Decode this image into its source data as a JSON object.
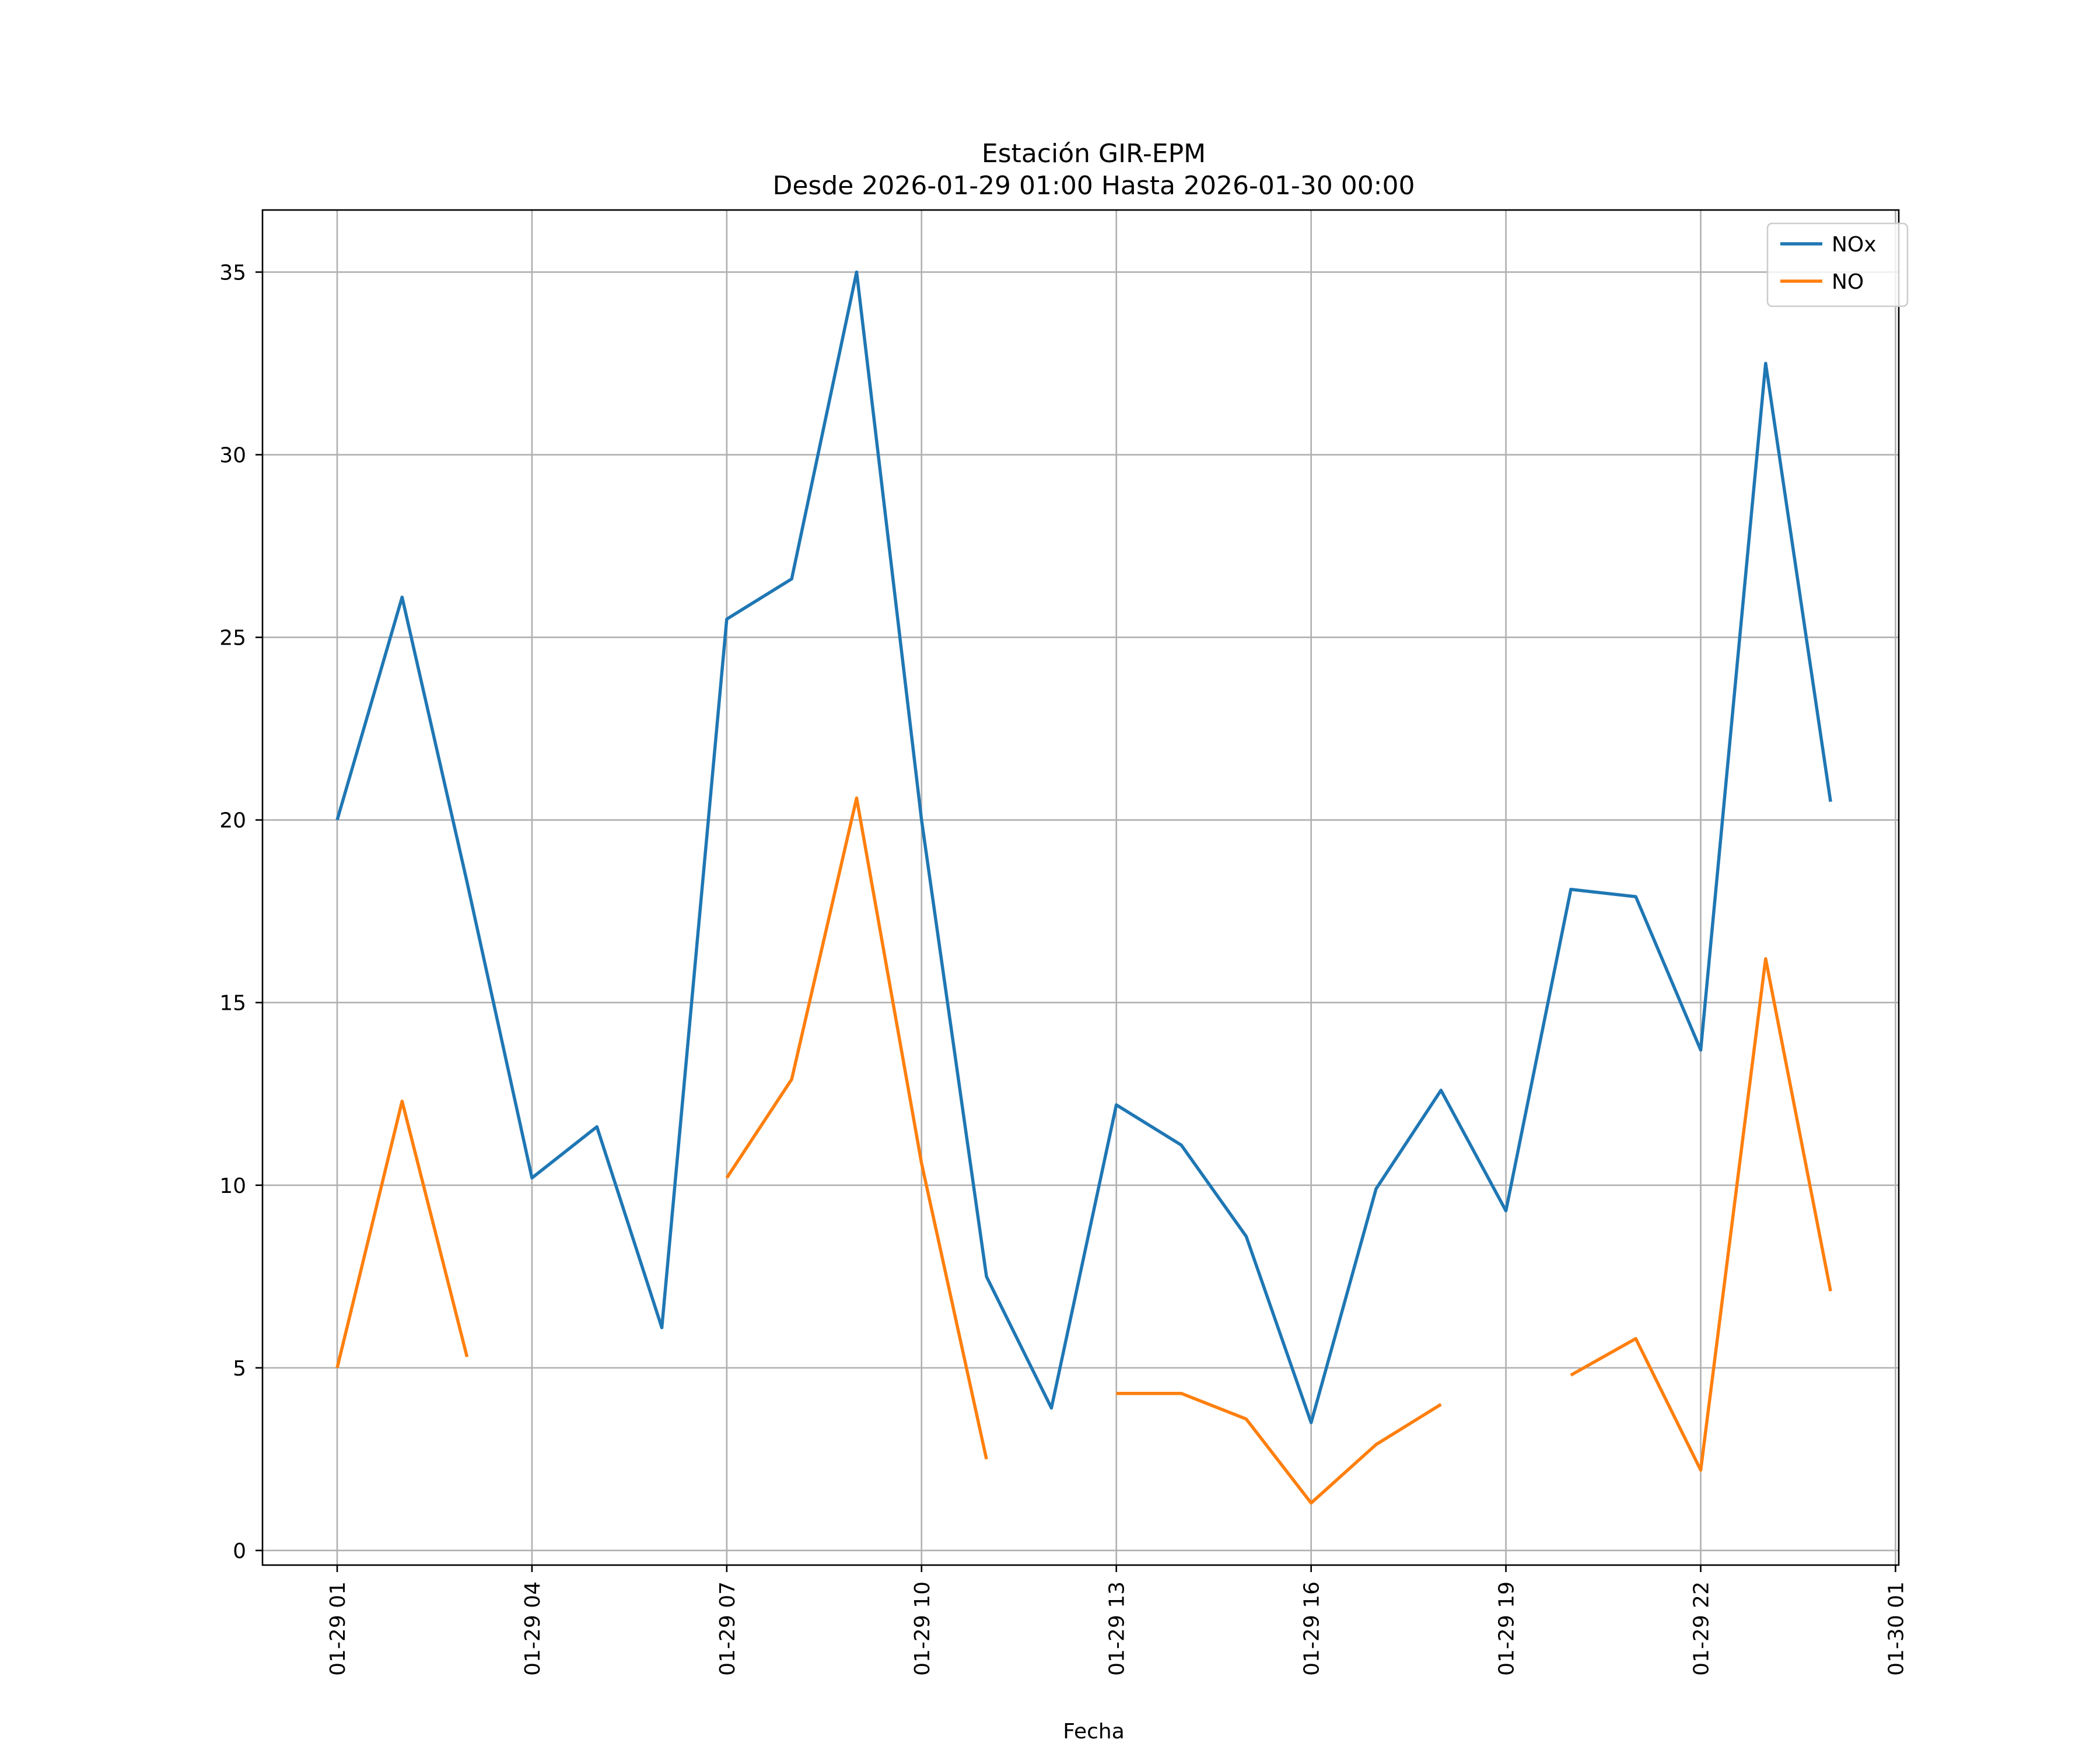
{
  "chart_data": {
    "type": "line",
    "title": "Estación GIR-EPM",
    "subtitle": "Desde 2026-01-29 01:00 Hasta 2026-01-30 00:00",
    "xlabel": "Fecha",
    "ylabel": "",
    "x_hours": [
      1,
      2,
      3,
      4,
      5,
      6,
      7,
      8,
      9,
      10,
      11,
      12,
      13,
      14,
      15,
      16,
      17,
      18,
      19,
      20,
      21,
      22,
      23,
      24
    ],
    "xlim": [
      -0.15,
      25.05
    ],
    "ylim": [
      -0.4,
      36.7
    ],
    "x_ticks": [
      {
        "hour": 1,
        "label": "01-29 01"
      },
      {
        "hour": 4,
        "label": "01-29 04"
      },
      {
        "hour": 7,
        "label": "01-29 07"
      },
      {
        "hour": 10,
        "label": "01-29 10"
      },
      {
        "hour": 13,
        "label": "01-29 13"
      },
      {
        "hour": 16,
        "label": "01-29 16"
      },
      {
        "hour": 19,
        "label": "01-29 19"
      },
      {
        "hour": 22,
        "label": "01-29 22"
      },
      {
        "hour": 25,
        "label": "01-30 01"
      }
    ],
    "y_ticks": [
      {
        "value": 0,
        "label": "0"
      },
      {
        "value": 5,
        "label": "5"
      },
      {
        "value": 10,
        "label": "10"
      },
      {
        "value": 15,
        "label": "15"
      },
      {
        "value": 20,
        "label": "20"
      },
      {
        "value": 25,
        "label": "25"
      },
      {
        "value": 30,
        "label": "30"
      },
      {
        "value": 35,
        "label": "35"
      }
    ],
    "grid": true,
    "legend_position": "top-right",
    "series": [
      {
        "name": "NOx",
        "color": "#1f77b4",
        "values": [
          20.0,
          26.1,
          18.3,
          10.2,
          11.6,
          6.1,
          25.5,
          26.6,
          35.0,
          20.0,
          7.5,
          3.9,
          12.2,
          11.1,
          8.6,
          3.5,
          9.9,
          12.6,
          9.3,
          18.1,
          17.9,
          13.7,
          32.5,
          20.5
        ]
      },
      {
        "name": "NO",
        "color": "#ff7f0e",
        "values": [
          5.0,
          12.3,
          5.3,
          null,
          null,
          null,
          10.2,
          12.9,
          20.6,
          10.6,
          2.5,
          null,
          4.3,
          4.3,
          3.6,
          1.3,
          2.9,
          4.0,
          null,
          4.8,
          5.8,
          2.2,
          16.2,
          7.1
        ]
      }
    ]
  }
}
